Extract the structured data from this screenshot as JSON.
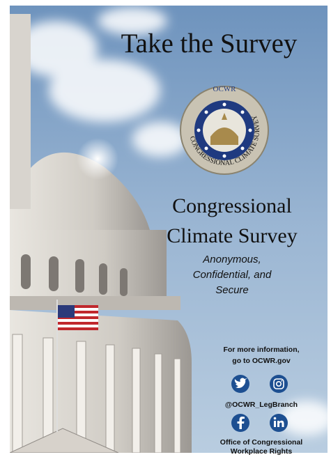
{
  "poster": {
    "title": "Take the Survey",
    "seal": {
      "top": "OCWR",
      "ring": "CONGRESSIONAL CLIMATE SURVEY"
    },
    "headline": [
      "Congressional",
      "Climate Survey"
    ],
    "tagline": [
      "Anonymous,",
      "Confidential, and",
      "Secure"
    ],
    "info": [
      "For more information,",
      "go to OCWR.gov"
    ],
    "handle": "@OCWR_LegBranch",
    "organization": [
      "Office of Congressional",
      "Workplace Rights"
    ]
  }
}
